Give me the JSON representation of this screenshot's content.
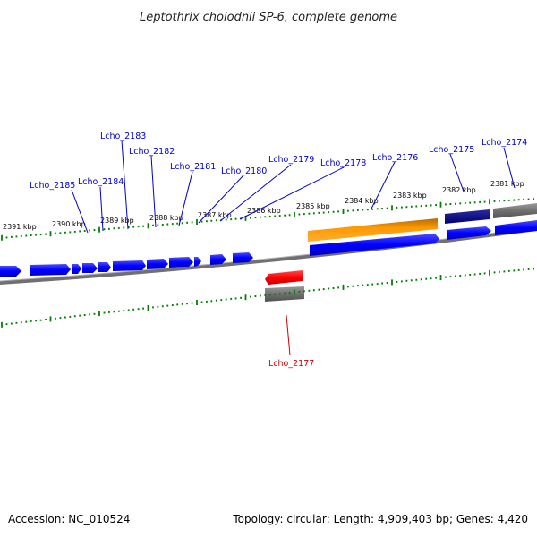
{
  "title": "Leptothrix cholodnii SP-6, complete genome",
  "footer": {
    "accession": "Accession: NC_010524",
    "summary": "Topology: circular; Length: 4,909,403 bp; Genes: 4,420"
  },
  "colors": {
    "forward_gene": "#0000ff",
    "reverse_gene": "#ff0000",
    "dark_gene": "#000080",
    "orange_feature": "#ff9900",
    "gray_feature": "#707070",
    "tick": "#008000",
    "label_forward": "#0000cc",
    "label_reverse": "#cc0000"
  },
  "scale_labels": [
    "2391 kbp",
    "2390 kbp",
    "2389 kbp",
    "2388 kbp",
    "2387 kbp",
    "2386 kbp",
    "2385 kbp",
    "2384 kbp",
    "2383 kbp",
    "2382 kbp",
    "2381 kbp"
  ],
  "gene_labels": [
    "Lcho_2185",
    "Lcho_2184",
    "Lcho_2183",
    "Lcho_2182",
    "Lcho_2181",
    "Lcho_2180",
    "Lcho_2179",
    "Lcho_2178",
    "Lcho_2176",
    "Lcho_2175",
    "Lcho_2174",
    "Lcho_2177"
  ]
}
